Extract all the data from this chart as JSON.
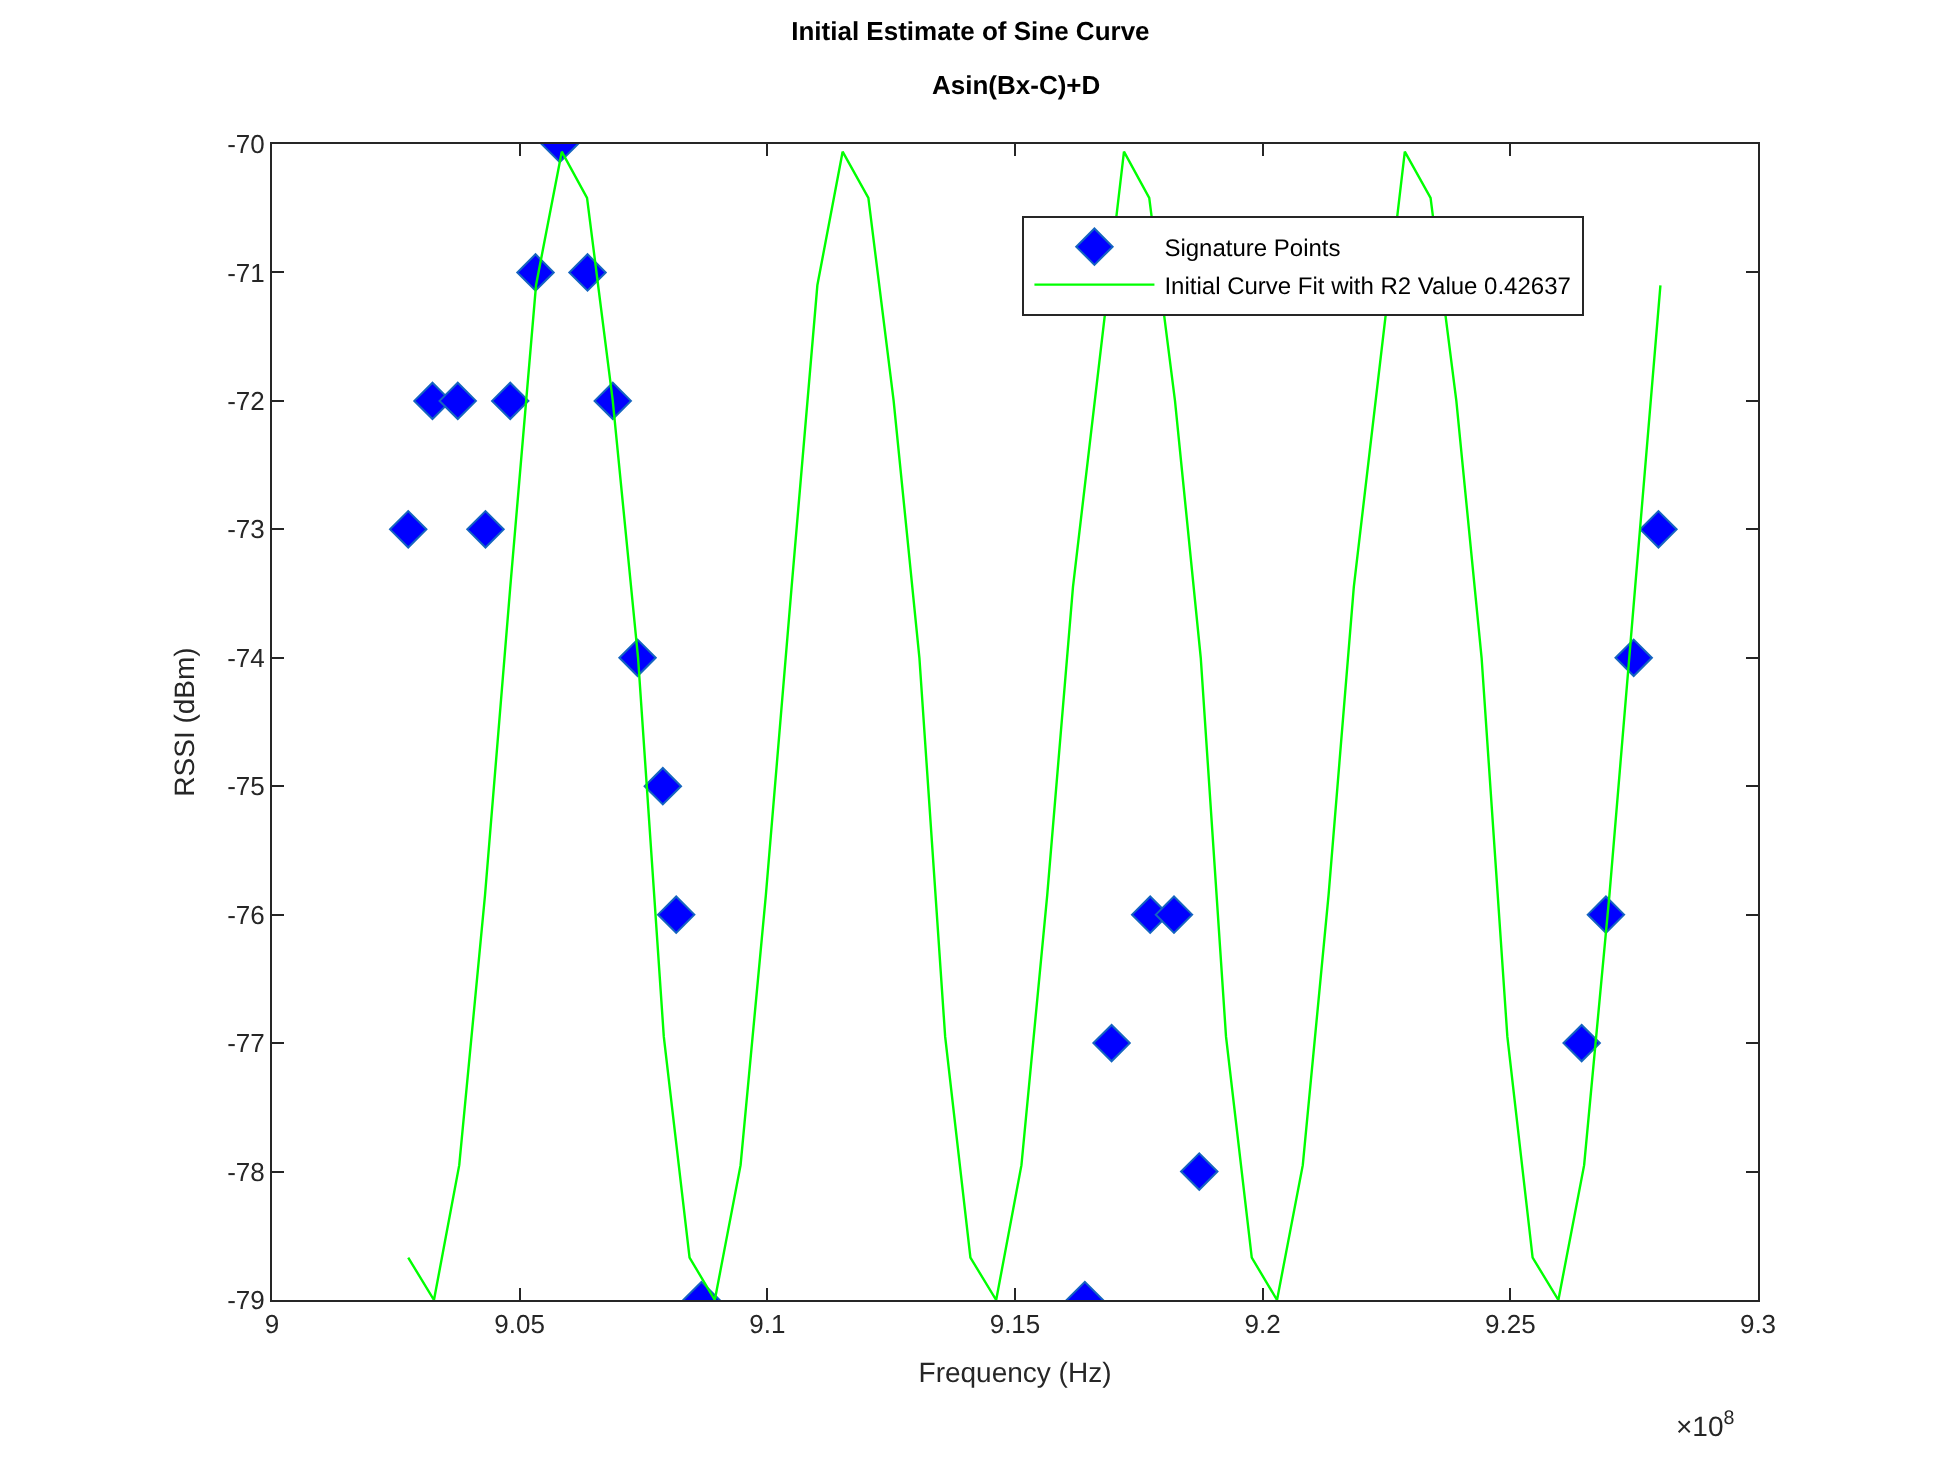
{
  "chart_data": {
    "type": "scatter",
    "title": "Initial Estimate of Sine Curve",
    "subtitle": "Asin(Bx-C)+D",
    "xlabel": "Frequency (Hz)",
    "ylabel": "RSSI (dBm)",
    "xlim": [
      9,
      9.3
    ],
    "xticks": [
      9,
      9.05,
      9.1,
      9.15,
      9.2,
      9.25,
      9.3
    ],
    "ylim": [
      -79,
      -70
    ],
    "yticks": [
      -79,
      -78,
      -77,
      -76,
      -75,
      -74,
      -73,
      -72,
      -71,
      -70
    ],
    "grid": false,
    "legend": "top right",
    "annotations": [
      "×10$^{8}$"
    ],
    "series": [
      {
        "name": "Signature Points",
        "type": "scatter",
        "marker": "diamond",
        "color": "#0000ff",
        "x": [
          9.0275,
          9.0324,
          9.0375,
          9.0431,
          9.0481,
          9.0532,
          9.0581,
          9.0637,
          9.0688,
          9.0738,
          9.0789,
          9.0816,
          9.0867,
          9.1641,
          9.1695,
          9.1773,
          9.1821,
          9.1872,
          9.2644,
          9.2693,
          9.2749,
          9.2799
        ],
        "values": [
          -73,
          -72,
          -72,
          -73,
          -72,
          -71,
          -70,
          -71,
          -72,
          -74,
          -75,
          -76,
          -79,
          -79,
          -77,
          -76,
          -76,
          -78,
          -77,
          -76,
          -74,
          -73
        ]
      },
      {
        "name": "Initial Curve Fit with R2 Value 0.42637",
        "type": "line",
        "marker": "none",
        "line_style": "solid",
        "color": "#00ff00",
        "x": [
          9.0275,
          9.0327,
          9.0378,
          9.043,
          9.0481,
          9.0533,
          9.0585,
          9.0636,
          9.0688,
          9.0739,
          9.0791,
          9.0843,
          9.0894,
          9.0946,
          9.0997,
          9.1049,
          9.1101,
          9.1152,
          9.1204,
          9.1255,
          9.1307,
          9.1359,
          9.141,
          9.1462,
          9.1513,
          9.1565,
          9.1617,
          9.1668,
          9.172,
          9.1771,
          9.1823,
          9.1875,
          9.1926,
          9.1978,
          9.2029,
          9.2081,
          9.2133,
          9.2184,
          9.2236,
          9.2287,
          9.2339,
          9.2391,
          9.2442,
          9.2494,
          9.2545,
          9.2597,
          9.2649,
          9.27,
          9.2752,
          9.2803
        ],
        "values": [
          -78.67,
          -79.0,
          -77.95,
          -75.85,
          -73.45,
          -71.1,
          -70.06,
          -70.42,
          -72.0,
          -74.0,
          -76.95,
          -78.67,
          -79.0,
          -77.95,
          -75.85,
          -73.45,
          -71.1,
          -70.06,
          -70.42,
          -72.0,
          -74.0,
          -76.95,
          -78.67,
          -79.0,
          -77.95,
          -75.85,
          -73.45,
          null,
          -70.06,
          -70.42,
          -72.0,
          -74.0,
          -76.95,
          -78.67,
          -79.0,
          -77.95,
          -75.85,
          -73.45,
          null,
          -70.06,
          -70.42,
          -72.0,
          -74.0,
          -76.95,
          -78.67,
          -79.0,
          -77.95,
          -75.85,
          -73.45,
          -71.1
        ]
      }
    ]
  }
}
